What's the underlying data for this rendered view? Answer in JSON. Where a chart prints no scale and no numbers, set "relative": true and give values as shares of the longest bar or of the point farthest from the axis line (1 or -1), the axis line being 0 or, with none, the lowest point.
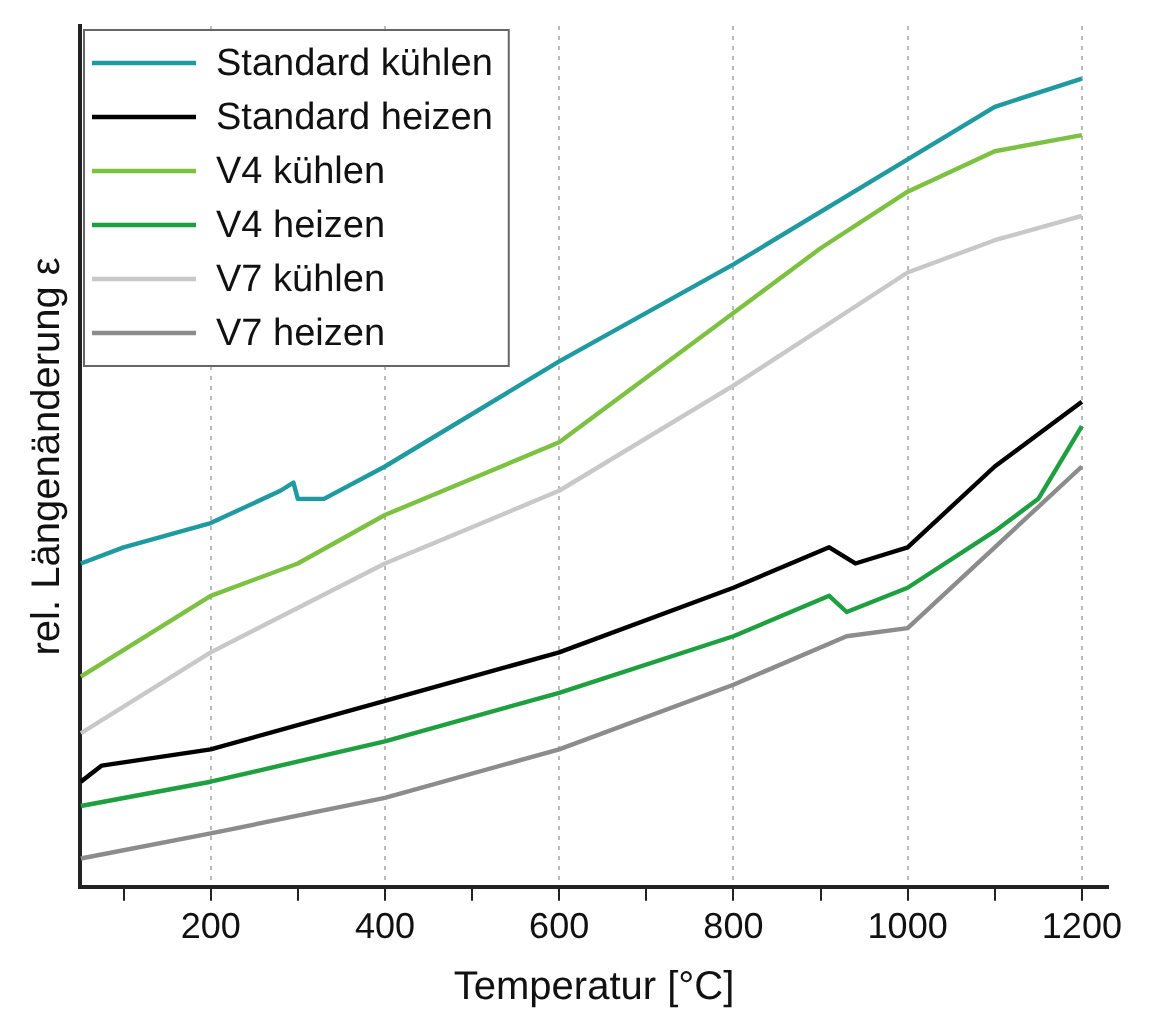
{
  "chart_data": {
    "type": "line",
    "xlabel": "Temperatur [°C]",
    "ylabel": "rel. Längenänderung ε",
    "relative": true,
    "grid": "x",
    "legend": "top left",
    "xlim": [
      50,
      1230
    ],
    "xticks": [
      {
        "value": 100,
        "label": null
      },
      200,
      {
        "value": 300,
        "label": null
      },
      400,
      {
        "value": 500,
        "label": null
      },
      600,
      {
        "value": 700,
        "label": null
      },
      800,
      {
        "value": 900,
        "label": null
      },
      1000,
      {
        "value": 1100,
        "label": null
      },
      1200
    ],
    "series": [
      {
        "name": "Standard kühlen",
        "color": "#1f9aa0",
        "x": [
          51,
          100,
          200,
          280,
          295,
          300,
          330,
          400,
          600,
          800,
          1000,
          1100,
          1200
        ],
        "values": [
          0.4,
          0.42,
          0.45,
          0.49,
          0.5,
          0.48,
          0.48,
          0.52,
          0.65,
          0.77,
          0.9,
          0.965,
          1.0
        ]
      },
      {
        "name": "Standard heizen",
        "color": "#000000",
        "x": [
          51,
          75,
          200,
          400,
          600,
          800,
          910,
          940,
          1000,
          1100,
          1200
        ],
        "values": [
          0.13,
          0.15,
          0.17,
          0.23,
          0.29,
          0.37,
          0.42,
          0.4,
          0.42,
          0.52,
          0.6
        ]
      },
      {
        "name": "V4 kühlen",
        "color": "#7cc142",
        "x": [
          51,
          200,
          300,
          400,
          600,
          800,
          900,
          1000,
          1100,
          1200
        ],
        "values": [
          0.26,
          0.36,
          0.4,
          0.46,
          0.55,
          0.71,
          0.79,
          0.86,
          0.91,
          0.93
        ]
      },
      {
        "name": "V4 heizen",
        "color": "#1fa040",
        "x": [
          51,
          200,
          400,
          600,
          800,
          910,
          930,
          1000,
          1100,
          1150,
          1200
        ],
        "values": [
          0.1,
          0.13,
          0.18,
          0.24,
          0.31,
          0.36,
          0.34,
          0.37,
          0.44,
          0.48,
          0.57
        ]
      },
      {
        "name": "V7 kühlen",
        "color": "#c8c8c8",
        "x": [
          51,
          200,
          400,
          600,
          800,
          1000,
          1100,
          1200
        ],
        "values": [
          0.19,
          0.29,
          0.4,
          0.49,
          0.62,
          0.76,
          0.8,
          0.83
        ]
      },
      {
        "name": "V7 heizen",
        "color": "#8c8c8c",
        "x": [
          51,
          200,
          400,
          600,
          800,
          930,
          1000,
          1100,
          1200
        ],
        "values": [
          0.035,
          0.066,
          0.11,
          0.17,
          0.25,
          0.31,
          0.32,
          0.42,
          0.52
        ]
      }
    ]
  }
}
